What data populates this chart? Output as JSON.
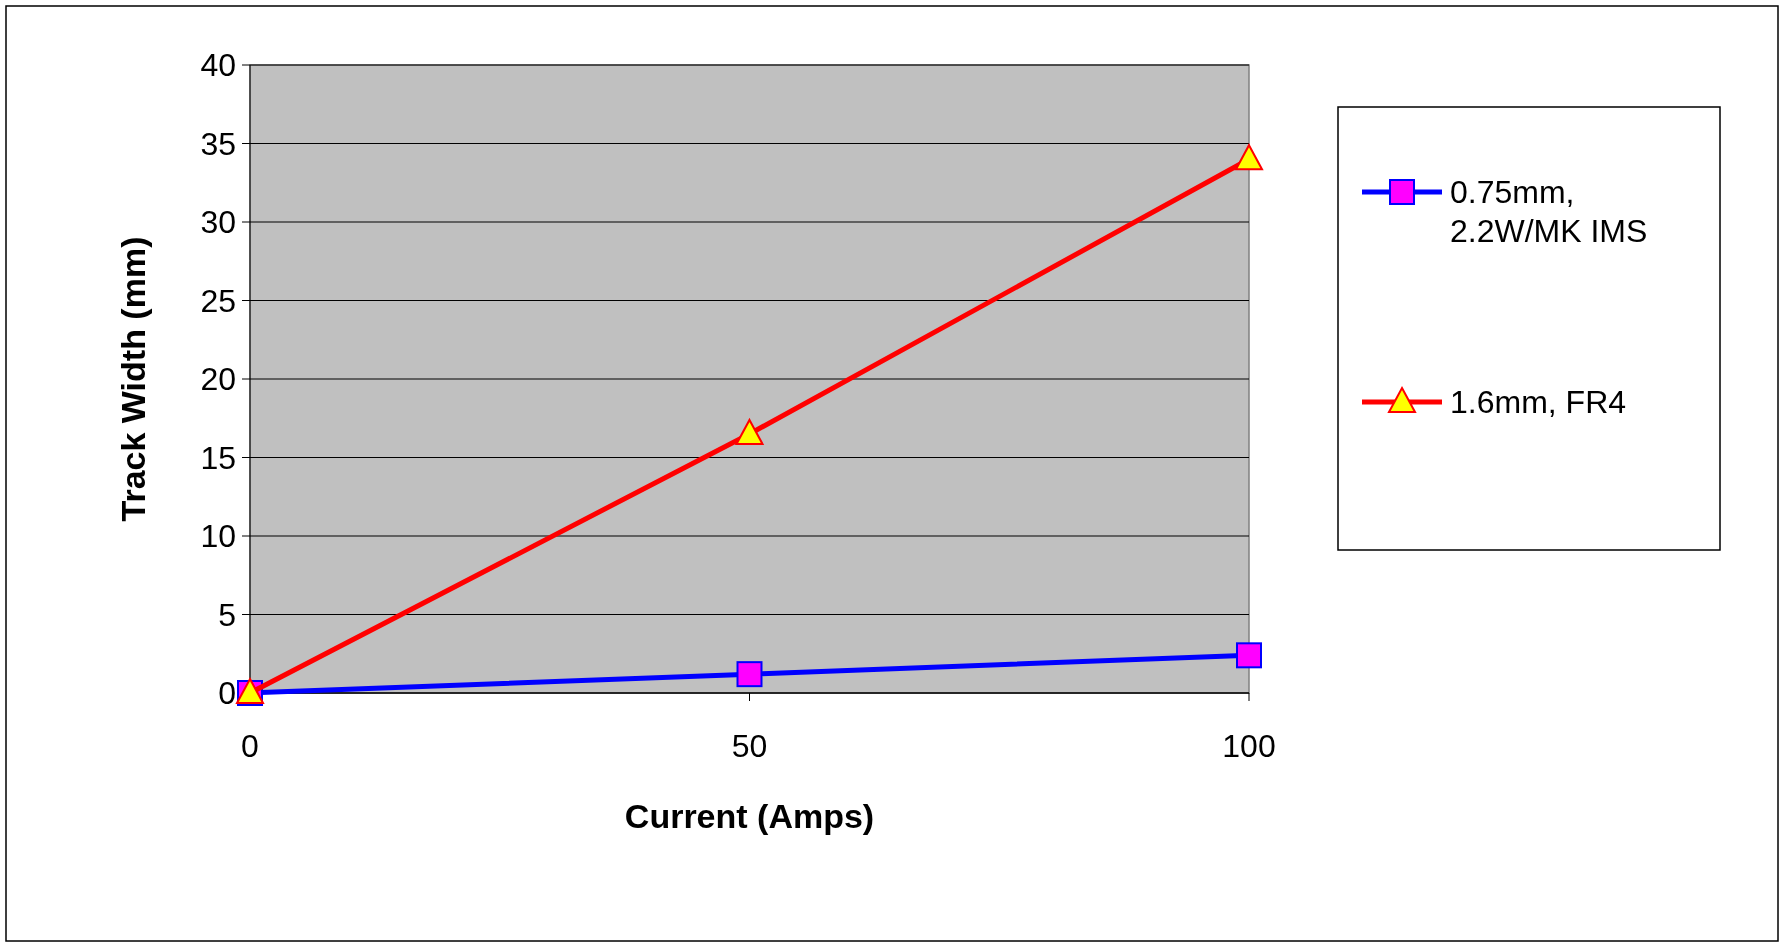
{
  "chart_data": {
    "type": "line",
    "xlabel": "Current (Amps)",
    "ylabel": "Track Width (mm)",
    "x": [
      0,
      50,
      100
    ],
    "xlim": [
      0,
      100
    ],
    "xticks": [
      0,
      50,
      100
    ],
    "ylim": [
      0,
      40
    ],
    "yticks": [
      0,
      5,
      10,
      15,
      20,
      25,
      30,
      35,
      40
    ],
    "grid": "y",
    "legend": "right",
    "series": [
      {
        "name": "0.75mm, 2.2W/MK IMS",
        "color": "#0000ff",
        "marker": "square",
        "values": [
          0,
          1.2,
          2.4
        ]
      },
      {
        "name": "1.6mm, FR4",
        "color": "#ff0000",
        "marker": "triangle",
        "values": [
          0,
          16.5,
          34
        ]
      }
    ]
  }
}
